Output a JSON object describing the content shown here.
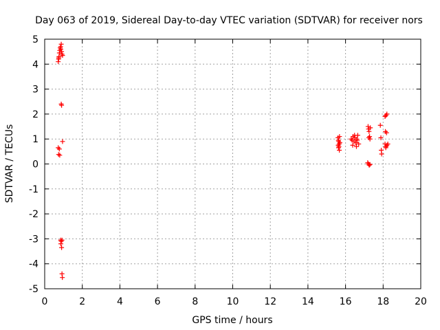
{
  "chart_data": {
    "type": "scatter",
    "title": "Day 063 of 2019, Sidereal Day-to-day VTEC variation (SDTVAR) for receiver nors",
    "xlabel": "GPS time / hours",
    "ylabel": "SDTVAR / TECUs",
    "xlim": [
      0,
      20
    ],
    "ylim": [
      -5,
      5
    ],
    "x_ticks": [
      0,
      2,
      4,
      6,
      8,
      10,
      12,
      14,
      16,
      18,
      20
    ],
    "y_ticks": [
      -5,
      -4,
      -3,
      -2,
      -1,
      0,
      1,
      2,
      3,
      4,
      5
    ],
    "grid": true,
    "marker": "plus",
    "color": "#ff0000",
    "series": [
      {
        "name": "SDTVAR",
        "points": [
          [
            0.72,
            4.1
          ],
          [
            0.74,
            4.2
          ],
          [
            0.76,
            4.3
          ],
          [
            0.78,
            4.45
          ],
          [
            0.8,
            4.55
          ],
          [
            0.82,
            4.65
          ],
          [
            0.85,
            4.7
          ],
          [
            0.88,
            4.8
          ],
          [
            0.9,
            4.5
          ],
          [
            0.92,
            4.4
          ],
          [
            0.95,
            4.35
          ],
          [
            0.75,
            4.25
          ],
          [
            0.86,
            4.6
          ],
          [
            0.88,
            2.4
          ],
          [
            0.9,
            2.35
          ],
          [
            0.72,
            0.65
          ],
          [
            0.78,
            0.6
          ],
          [
            0.74,
            0.38
          ],
          [
            0.8,
            0.35
          ],
          [
            0.95,
            0.9
          ],
          [
            0.85,
            -3.05
          ],
          [
            0.88,
            -3.1
          ],
          [
            0.92,
            -3.05
          ],
          [
            0.86,
            -3.2
          ],
          [
            0.9,
            -3.35
          ],
          [
            0.92,
            -4.4
          ],
          [
            0.94,
            -4.55
          ],
          [
            15.6,
            1.05
          ],
          [
            15.62,
            0.95
          ],
          [
            15.64,
            0.9
          ],
          [
            15.66,
            0.8
          ],
          [
            15.65,
            0.7
          ],
          [
            15.63,
            0.65
          ],
          [
            15.67,
            0.55
          ],
          [
            15.7,
            0.85
          ],
          [
            15.68,
            1.1
          ],
          [
            15.61,
            0.75
          ],
          [
            16.3,
            1.0
          ],
          [
            16.35,
            0.95
          ],
          [
            16.4,
            1.1
          ],
          [
            16.45,
            0.9
          ],
          [
            16.5,
            1.05
          ],
          [
            16.55,
            0.85
          ],
          [
            16.6,
            1.0
          ],
          [
            16.65,
            1.15
          ],
          [
            16.7,
            0.8
          ],
          [
            16.38,
            0.75
          ],
          [
            16.48,
            1.15
          ],
          [
            16.58,
            0.7
          ],
          [
            16.62,
            0.95
          ],
          [
            17.2,
            1.5
          ],
          [
            17.22,
            1.4
          ],
          [
            17.25,
            1.3
          ],
          [
            17.28,
            1.1
          ],
          [
            17.3,
            1.0
          ],
          [
            17.32,
            1.45
          ],
          [
            17.24,
            1.05
          ],
          [
            17.18,
            0.05
          ],
          [
            17.22,
            0.0
          ],
          [
            17.26,
            -0.05
          ],
          [
            17.3,
            -0.02
          ],
          [
            17.85,
            1.55
          ],
          [
            17.88,
            1.05
          ],
          [
            17.9,
            0.55
          ],
          [
            17.92,
            0.4
          ],
          [
            18.1,
            1.9
          ],
          [
            18.15,
            1.95
          ],
          [
            18.2,
            2.0
          ],
          [
            18.12,
            1.3
          ],
          [
            18.18,
            1.25
          ],
          [
            18.1,
            0.8
          ],
          [
            18.15,
            0.7
          ],
          [
            18.2,
            0.75
          ],
          [
            18.25,
            0.8
          ],
          [
            18.14,
            0.65
          ]
        ]
      }
    ]
  }
}
